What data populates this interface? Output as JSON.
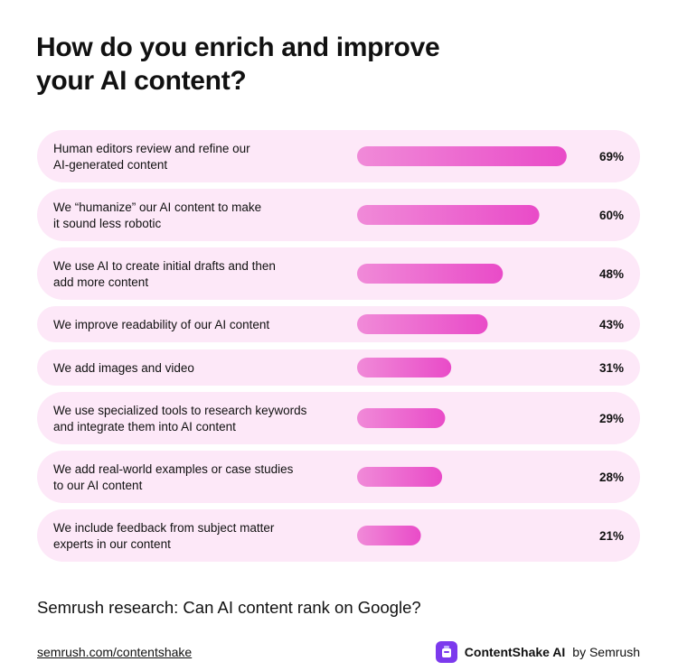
{
  "title_lines": [
    "How do you enrich and improve",
    "your AI content?"
  ],
  "footer": {
    "research_title": "Semrush research: Can AI content rank on Google?",
    "link": "semrush.com/contentshake",
    "brand_name": "ContentShake AI",
    "brand_suffix": "by Semrush",
    "brand_icon": "contentshake-logo-icon"
  },
  "colors": {
    "row_bg": "#fde8f8",
    "bar_start": "#f08ad8",
    "bar_end": "#e94bc8",
    "brand": "#7c3aed"
  },
  "chart_data": {
    "type": "bar",
    "orientation": "horizontal",
    "xlim": [
      0,
      100
    ],
    "unit": "%",
    "categories": [
      [
        "Human editors review and refine our",
        "AI-generated content"
      ],
      [
        "We “humanize” our AI content to make",
        "it sound less robotic"
      ],
      [
        "We use AI to create initial drafts and then",
        "add more content"
      ],
      [
        "We improve readability of our AI content"
      ],
      [
        "We add images and video"
      ],
      [
        "We use specialized tools to research keywords",
        "and integrate them into AI content"
      ],
      [
        "We add real-world examples or case studies",
        "to our AI content"
      ],
      [
        "We include feedback from subject matter",
        "experts in our content"
      ]
    ],
    "values": [
      69,
      60,
      48,
      43,
      31,
      29,
      28,
      21
    ],
    "value_labels": [
      "69%",
      "60%",
      "48%",
      "43%",
      "31%",
      "29%",
      "28%",
      "21%"
    ]
  }
}
